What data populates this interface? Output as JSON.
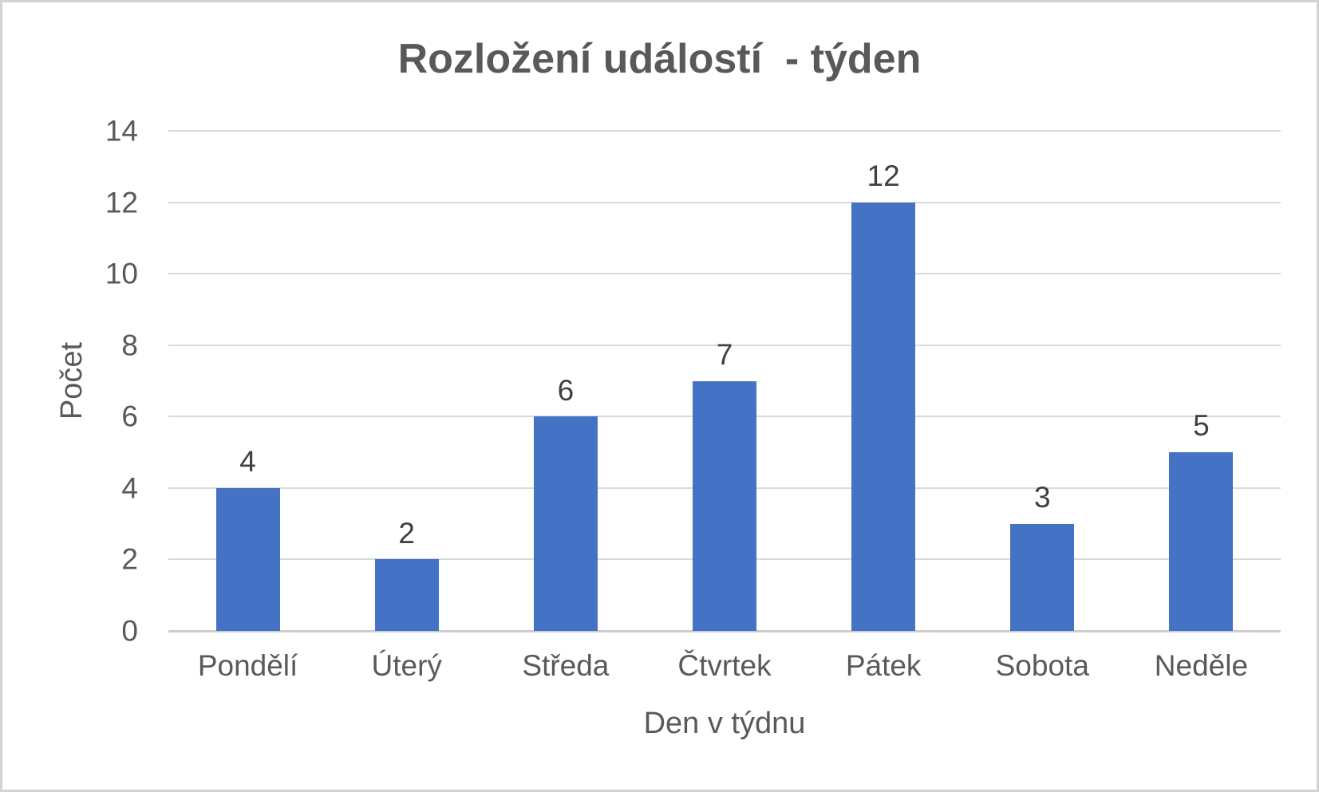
{
  "chart_data": {
    "type": "bar",
    "title": "Rozložení událostí  - týden",
    "categories": [
      "Pondělí",
      "Úterý",
      "Středa",
      "Čtvrtek",
      "Pátek",
      "Sobota",
      "Neděle"
    ],
    "values": [
      4,
      2,
      6,
      7,
      12,
      3,
      5
    ],
    "xlabel": "Den v týdnu",
    "ylabel": "Počet",
    "ylim": [
      0,
      14
    ],
    "yticks": [
      0,
      2,
      4,
      6,
      8,
      10,
      12,
      14
    ],
    "grid": true,
    "legend_position": "none",
    "data_labels": true,
    "bar_color": "#4472c4"
  },
  "colors": {
    "bar": "#4472c4",
    "gridline": "#d9d9d9",
    "axis_line": "#cdcdcd",
    "title_text": "#595959",
    "axis_text": "#595959",
    "data_label_text": "#404040",
    "frame_border": "#d2d2d2",
    "background": "#ffffff"
  }
}
